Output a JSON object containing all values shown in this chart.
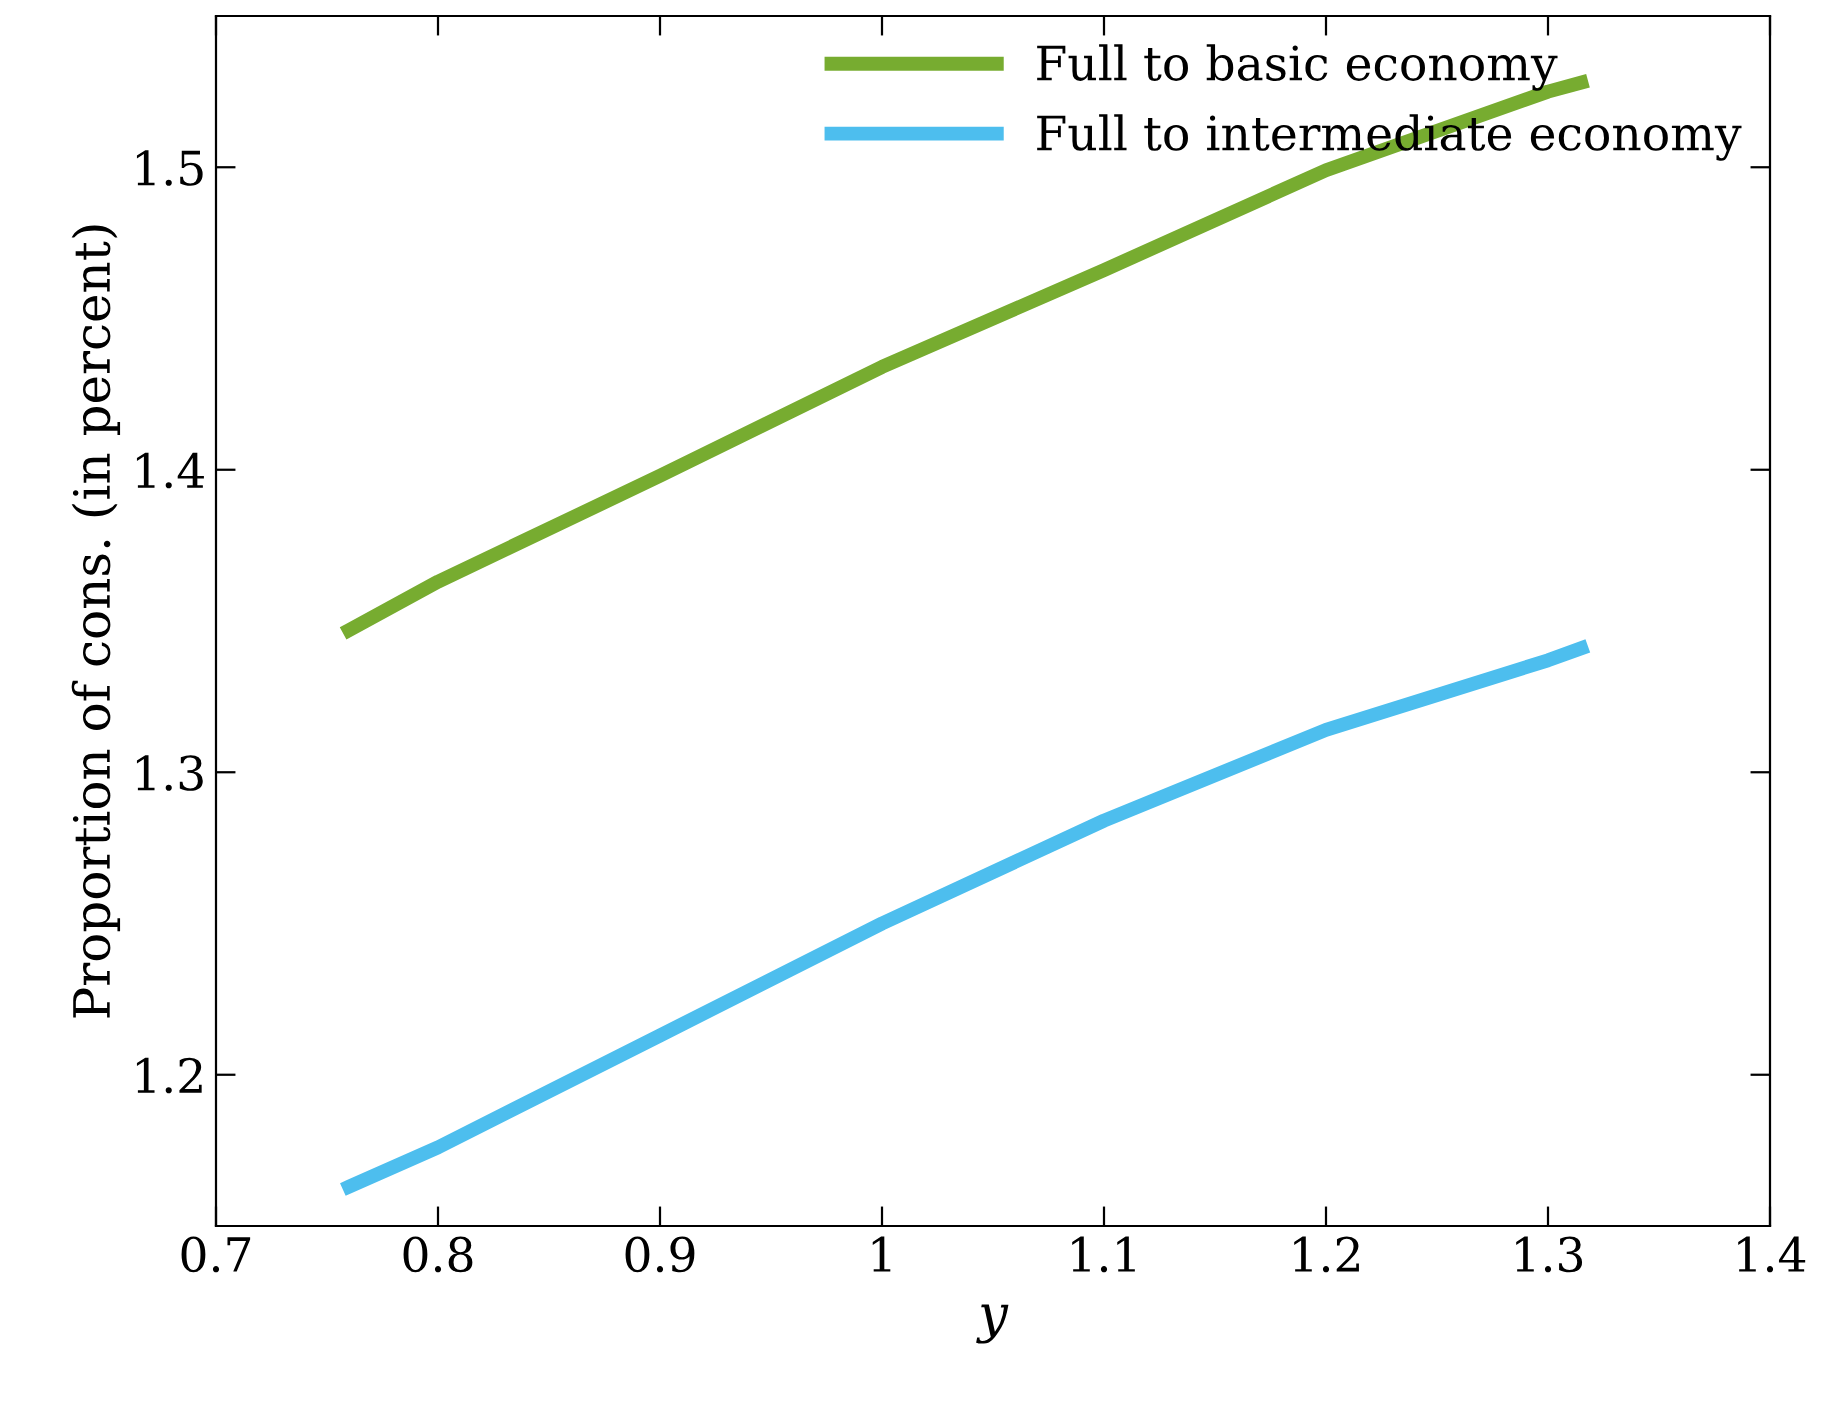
{
  "chart_data": {
    "type": "line",
    "xlabel": "y",
    "ylabel": "Proportion of cons. (in percent)",
    "xlim": [
      0.7,
      1.4
    ],
    "xticks": [
      0.7,
      0.8,
      0.9,
      {
        "value": 1,
        "label": "1"
      },
      1.1,
      1.2,
      1.3,
      1.4
    ],
    "ylim": [
      1.15,
      1.55
    ],
    "yticks": [
      1.2,
      1.3,
      1.4,
      1.5
    ],
    "grid": false,
    "legend": "top right",
    "marker": "none",
    "line_style": "solid",
    "series": [
      {
        "name": "Full to basic economy",
        "color": "#77ac30",
        "x": [
          0.76,
          0.8,
          0.9,
          1.0,
          1.1,
          1.2,
          1.3,
          1.315
        ],
        "values": [
          1.347,
          1.363,
          1.398,
          1.434,
          1.466,
          1.499,
          1.525,
          1.528
        ]
      },
      {
        "name": "Full to intermediate economy",
        "color": "#4dbeee",
        "x": [
          0.76,
          0.8,
          0.9,
          1.0,
          1.1,
          1.2,
          1.3,
          1.315
        ],
        "values": [
          1.163,
          1.176,
          1.213,
          1.25,
          1.284,
          1.314,
          1.337,
          1.341
        ]
      }
    ]
  }
}
